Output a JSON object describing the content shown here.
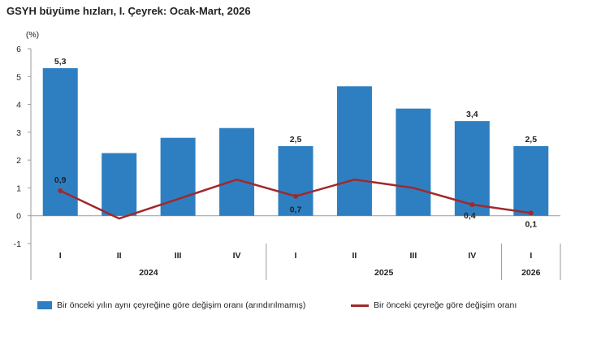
{
  "title": "GSYH büyüme hızları, I. Çeyrek: Ocak-Mart, 2026",
  "chart_data": {
    "type": "bar",
    "unit_label": "(%)",
    "ylim": [
      -1,
      6
    ],
    "yticks": [
      "-1",
      "0",
      "1",
      "2",
      "3",
      "4",
      "5",
      "6"
    ],
    "categories": [
      "I",
      "II",
      "III",
      "IV",
      "I",
      "II",
      "III",
      "IV",
      "I"
    ],
    "years": [
      {
        "label": "2024",
        "start": 0,
        "end": 3
      },
      {
        "label": "2025",
        "start": 4,
        "end": 7
      },
      {
        "label": "2026",
        "start": 8,
        "end": 8
      }
    ],
    "series": [
      {
        "name": "Bir önceki yılın aynı çeyreğine göre değişim oranı (arındırılmamış)",
        "type": "bar",
        "color": "#2e7fc2",
        "values": [
          5.3,
          2.25,
          2.8,
          3.15,
          2.5,
          4.65,
          3.85,
          3.4,
          2.5
        ],
        "labels": [
          "5,3",
          "",
          "",
          "",
          "2,5",
          "",
          "",
          "3,4",
          "2,5"
        ]
      },
      {
        "name": "Bir önceki çeyreğe göre değişim oranı",
        "type": "line",
        "color": "#a0292b",
        "values": [
          0.9,
          -0.1,
          0.6,
          1.3,
          0.7,
          1.3,
          1.0,
          0.4,
          0.1
        ],
        "labels": [
          "0,9",
          "",
          "",
          "",
          "0,7",
          "",
          "",
          "0,4",
          "0,1"
        ]
      }
    ],
    "grid": false,
    "legend_position": "bottom"
  }
}
